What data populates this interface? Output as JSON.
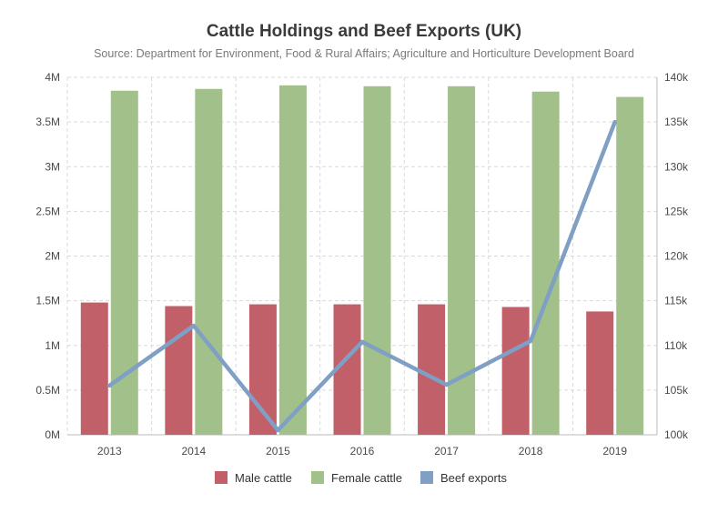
{
  "colors": {
    "male": "#c2606a",
    "female": "#a2c08a",
    "exports": "#7f9fc4",
    "grid": "#d9d9d9",
    "axis": "#bbbbbb"
  },
  "chart_data": {
    "type": "bar",
    "title": "Cattle Holdings and Beef Exports (UK)",
    "subtitle": "Source: Department for Environment, Food & Rural Affairs; Agriculture and Horticulture Development Board",
    "categories": [
      "2013",
      "2014",
      "2015",
      "2016",
      "2017",
      "2018",
      "2019"
    ],
    "y_left": {
      "ylim": [
        0,
        4000000
      ],
      "ticks": [
        0,
        500000,
        1000000,
        1500000,
        2000000,
        2500000,
        3000000,
        3500000,
        4000000
      ],
      "tick_labels": [
        "0M",
        "0.5M",
        "1M",
        "1.5M",
        "2M",
        "2.5M",
        "3M",
        "3.5M",
        "4M"
      ]
    },
    "y_right": {
      "ylim": [
        100000,
        140000
      ],
      "ticks": [
        100000,
        105000,
        110000,
        115000,
        120000,
        125000,
        130000,
        135000,
        140000
      ],
      "tick_labels": [
        "100k",
        "105k",
        "110k",
        "115k",
        "120k",
        "125k",
        "130k",
        "135k",
        "140k"
      ]
    },
    "series": [
      {
        "name": "Male cattle",
        "type": "bar",
        "axis": "left",
        "values": [
          1480000,
          1440000,
          1460000,
          1460000,
          1460000,
          1430000,
          1380000
        ]
      },
      {
        "name": "Female cattle",
        "type": "bar",
        "axis": "left",
        "values": [
          3850000,
          3870000,
          3910000,
          3900000,
          3900000,
          3840000,
          3780000
        ]
      },
      {
        "name": "Beef exports",
        "type": "line",
        "axis": "right",
        "values": [
          105500,
          112200,
          100500,
          110400,
          105600,
          110500,
          135000
        ]
      }
    ],
    "grid": true,
    "legend": "bottom-center"
  }
}
